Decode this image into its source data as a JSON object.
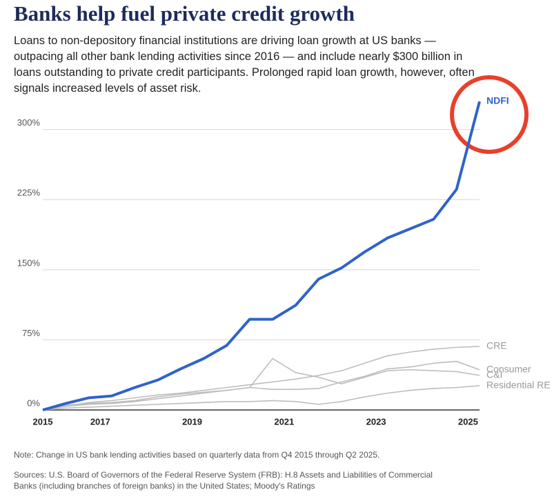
{
  "chart_data": {
    "type": "line",
    "title": "Banks help fuel private credit growth",
    "subtitle": "Loans to non-depository financial institutions are driving loan growth at US banks — outpacing all other bank lending activities since 2016 — and include nearly $300 billion in loans outstanding to private credit participants. Prolonged rapid loan growth, however, often signals increased levels of asset risk.",
    "note": "Note: Change in US bank lending activities based on quarterly data from Q4 2015 through Q2 2025.",
    "sources": "Sources: U.S. Board of Governors of the Federal Reserve System (FRB): H.8 Assets and Liabilities of Commercial Banks (including branches of foreign banks) in the United States; Moody's Ratings",
    "x": [
      2015.75,
      2016.25,
      2016.75,
      2017.25,
      2017.75,
      2018.25,
      2018.75,
      2019.25,
      2019.75,
      2020.25,
      2020.75,
      2021.25,
      2021.75,
      2022.25,
      2022.75,
      2023.25,
      2023.75,
      2024.25,
      2024.75,
      2025.25
    ],
    "xlim": [
      2015.75,
      2025.25
    ],
    "xticks": [
      2015,
      2017,
      2019,
      2021,
      2023,
      2025
    ],
    "ylim": [
      0,
      330
    ],
    "yticks": [
      {
        "value": 0,
        "label": "0%"
      },
      {
        "value": 75,
        "label": "75%"
      },
      {
        "value": 150,
        "label": "150%"
      },
      {
        "value": 225,
        "label": "225%"
      },
      {
        "value": 300,
        "label": "300%"
      }
    ],
    "grid": true,
    "series": [
      {
        "name": "CRE",
        "color": "#bdbdbd",
        "values": [
          0,
          4,
          8,
          10,
          13,
          16,
          18,
          21,
          24,
          27,
          30,
          33,
          37,
          42,
          50,
          58,
          62,
          65,
          67,
          68
        ]
      },
      {
        "name": "Consumer",
        "color": "#bdbdbd",
        "values": [
          0,
          5,
          7,
          8,
          10,
          14,
          17,
          19,
          21,
          24,
          22,
          22,
          23,
          30,
          36,
          44,
          46,
          50,
          52,
          43
        ]
      },
      {
        "name": "C&I",
        "color": "#bdbdbd",
        "values": [
          0,
          4,
          6,
          7,
          9,
          12,
          15,
          18,
          21,
          24,
          55,
          40,
          35,
          28,
          35,
          42,
          43,
          42,
          41,
          37
        ]
      },
      {
        "name": "Residential RE",
        "color": "#bdbdbd",
        "values": [
          0,
          2,
          3,
          4,
          5,
          6,
          7,
          8,
          9,
          9,
          10,
          9,
          6,
          9,
          14,
          18,
          21,
          23,
          24,
          26
        ]
      },
      {
        "name": "NDFI",
        "color": "#2f63c9",
        "values": [
          0,
          7,
          13,
          15,
          24,
          32,
          44,
          55,
          69,
          97,
          97,
          112,
          140,
          152,
          169,
          184,
          194,
          204,
          236,
          330
        ]
      }
    ]
  }
}
